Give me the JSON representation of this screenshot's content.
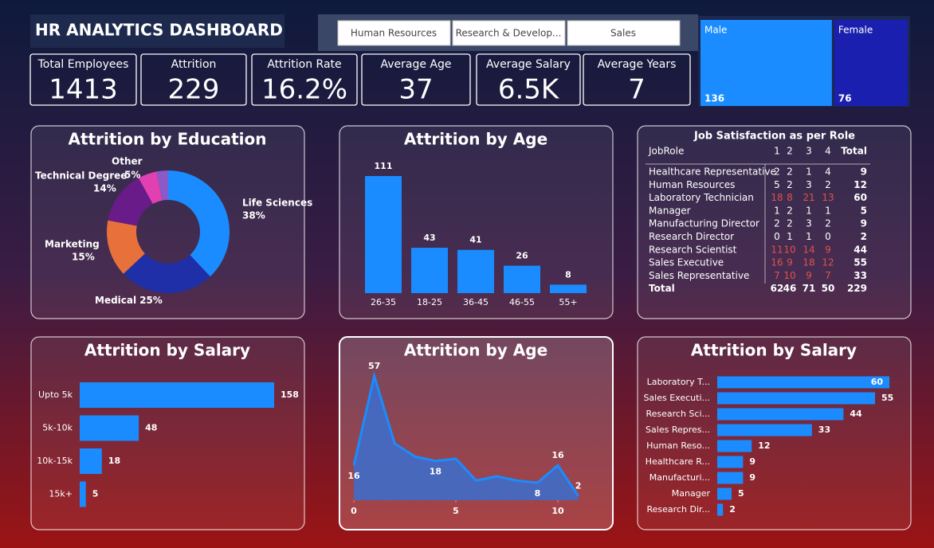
{
  "header": {
    "title": "HR ANALYTICS DASHBOARD"
  },
  "slicers": [
    "Human Resources",
    "Research & Develop...",
    "Sales"
  ],
  "kpis": [
    {
      "label": "Total Employees",
      "value": 1413
    },
    {
      "label": "Attrition",
      "value": 229
    },
    {
      "label": "Attrition Rate",
      "value": "16.2%"
    },
    {
      "label": "Average Age",
      "value": 37
    },
    {
      "label": "Average Salary",
      "value": "6.5K"
    },
    {
      "label": "Average Years",
      "value": 7
    }
  ],
  "chart_data": [
    {
      "type": "treemap",
      "categories": [
        "Male",
        "Female"
      ],
      "values": [
        136,
        76
      ],
      "colors": [
        "#1a8cff",
        "#1a1fb0"
      ]
    },
    {
      "type": "donut",
      "title": "Attrition by Education",
      "categories": [
        "Life Sciences",
        "Medical",
        "Marketing",
        "Technical Degree",
        "Other",
        null
      ],
      "values": [
        38,
        25,
        15,
        14,
        5,
        3
      ],
      "value_labels": [
        "38%",
        "25%",
        "15%",
        "14%",
        "5%",
        null
      ],
      "colors": [
        "#1a8cff",
        "#1f2fa8",
        "#e8703a",
        "#6a1b8a",
        "#e040b0",
        "#8a5ac8"
      ]
    },
    {
      "type": "bar",
      "title": "Attrition by Age",
      "categories": [
        "26-35",
        "18-25",
        "36-45",
        "46-55",
        "55+"
      ],
      "values": [
        111,
        43,
        41,
        26,
        8
      ],
      "color": "#1a8cff"
    },
    {
      "type": "barh",
      "title": "Attrition by Salary",
      "categories": [
        "Upto 5k",
        "5k-10k",
        "10k-15k",
        "15k+"
      ],
      "values": [
        158,
        48,
        18,
        5
      ],
      "color": "#1a8cff"
    },
    {
      "type": "area",
      "title": "Attrition by Age",
      "x": [
        0,
        1,
        2,
        3,
        4,
        5,
        6,
        7,
        8,
        9,
        10,
        11
      ],
      "values": [
        16,
        57,
        26,
        20,
        18,
        19,
        9,
        11,
        9,
        8,
        16,
        2
      ],
      "value_labels": [
        "16",
        "57",
        null,
        null,
        "18",
        null,
        null,
        null,
        null,
        "8",
        "16",
        "2"
      ],
      "xlim": [
        0,
        11
      ],
      "xticks": [
        0,
        5,
        10
      ],
      "color": "#1a8cff"
    },
    {
      "type": "barh",
      "title": "Attrition by Salary",
      "categories": [
        "Laboratory T...",
        "Sales Executi...",
        "Research Sci...",
        "Sales Repres...",
        "Human Reso...",
        "Healthcare R...",
        "Manufacturi...",
        "Manager",
        "Research Dir..."
      ],
      "values": [
        60,
        55,
        44,
        33,
        12,
        9,
        9,
        5,
        2
      ],
      "color": "#1a8cff"
    }
  ],
  "table": {
    "title": "Job Satisfaction as per Role",
    "highlight_color": "#e0524a",
    "columns": [
      "JobRole",
      "1",
      "2",
      "3",
      "4",
      "Total"
    ],
    "rows": [
      {
        "cells": [
          "Healthcare Representative",
          2,
          2,
          1,
          4,
          9
        ],
        "highlight": false
      },
      {
        "cells": [
          "Human Resources",
          5,
          2,
          3,
          2,
          12
        ],
        "highlight": false
      },
      {
        "cells": [
          "Laboratory Technician",
          18,
          8,
          21,
          13,
          60
        ],
        "highlight": true
      },
      {
        "cells": [
          "Manager",
          1,
          2,
          1,
          1,
          5
        ],
        "highlight": false
      },
      {
        "cells": [
          "Manufacturing Director",
          2,
          2,
          3,
          2,
          9
        ],
        "highlight": false
      },
      {
        "cells": [
          "Research Director",
          0,
          1,
          1,
          0,
          2
        ],
        "highlight": false
      },
      {
        "cells": [
          "Research Scientist",
          11,
          10,
          14,
          9,
          44
        ],
        "highlight": true
      },
      {
        "cells": [
          "Sales Executive",
          16,
          9,
          18,
          12,
          55
        ],
        "highlight": true
      },
      {
        "cells": [
          "Sales Representative",
          7,
          10,
          9,
          7,
          33
        ],
        "highlight": true
      },
      {
        "cells": [
          "Total",
          62,
          46,
          71,
          50,
          229
        ],
        "highlight": false
      }
    ]
  }
}
